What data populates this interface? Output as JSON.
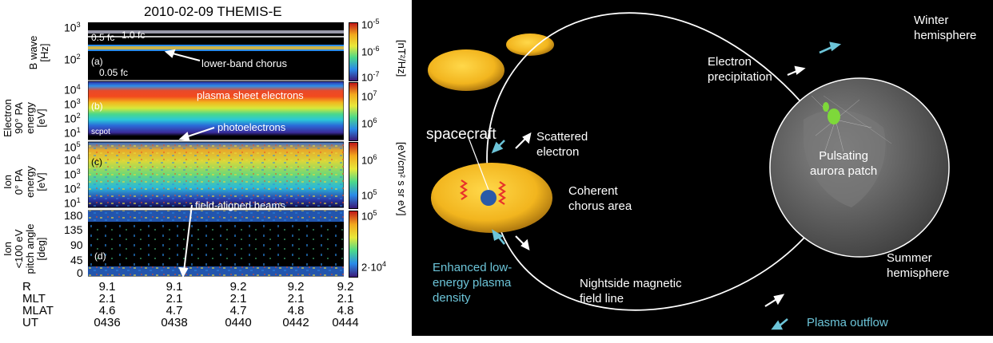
{
  "title": "2010-02-09  THEMIS-E",
  "panels": {
    "a": {
      "tag": "(a)",
      "ylabel_line1": "B wave",
      "ylabel_line2": "[Hz]",
      "yticks": [
        "10",
        "10"
      ],
      "ytick_exp": [
        "3",
        "2"
      ],
      "ref_lines": [
        "0.5 fc",
        "1.0 fc",
        "0.05 fc"
      ],
      "annotation": "lower-band chorus",
      "colorbar_ticks": [
        "10",
        "10",
        "10"
      ],
      "colorbar_exp": [
        "-5",
        "-6",
        "-7"
      ],
      "colorbar_unit": "[nT²/Hz]"
    },
    "b": {
      "tag": "(b)",
      "ylabel_lines": [
        "Electron",
        "90° PA",
        "energy",
        "[eV]"
      ],
      "yticks": [
        "10",
        "10",
        "10",
        "10"
      ],
      "ytick_exp": [
        "4",
        "3",
        "2",
        "1"
      ],
      "annotations": [
        "plasma sheet electrons",
        "photoelectrons",
        "scpot"
      ],
      "colorbar_ticks": [
        "10",
        "10"
      ],
      "colorbar_exp": [
        "7",
        "6"
      ]
    },
    "c": {
      "tag": "(c)",
      "ylabel_lines": [
        "Ion",
        "0° PA",
        "energy",
        "[eV]"
      ],
      "yticks": [
        "10",
        "10",
        "10",
        "10",
        "10"
      ],
      "ytick_exp": [
        "5",
        "4",
        "3",
        "2",
        "1"
      ],
      "annotation": "field-aligned beams",
      "colorbar_ticks": [
        "10",
        "10"
      ],
      "colorbar_exp": [
        "6",
        "5"
      ],
      "colorbar_unit": "[eV/cm² s sr eV]"
    },
    "d": {
      "tag": "(d)",
      "ylabel_lines": [
        "Ion",
        "<100 eV",
        "pitch angle",
        "[deg]"
      ],
      "yticks": [
        "180",
        "135",
        "90",
        "45",
        "0"
      ],
      "colorbar_ticks": [
        "10",
        "2·10"
      ],
      "colorbar_exp": [
        "5",
        "4"
      ]
    }
  },
  "ephemeris": {
    "labels": [
      "R",
      "MLT",
      "MLAT",
      "UT"
    ],
    "columns": [
      {
        "R": "9.1",
        "MLT": "2.1",
        "MLAT": "4.6",
        "UT": "0436"
      },
      {
        "R": "9.1",
        "MLT": "2.1",
        "MLAT": "4.7",
        "UT": "0438"
      },
      {
        "R": "9.2",
        "MLT": "2.1",
        "MLAT": "4.7",
        "UT": "0440"
      },
      {
        "R": "9.2",
        "MLT": "2.1",
        "MLAT": "4.8",
        "UT": "0442"
      },
      {
        "R": "9.2",
        "MLT": "2.1",
        "MLAT": "4.8",
        "UT": "0444"
      }
    ]
  },
  "schematic": {
    "spacecraft": "spacecraft",
    "scattered": [
      "Scattered",
      "electron"
    ],
    "coherent": [
      "Coherent",
      "chorus area"
    ],
    "enhanced": [
      "Enhanced low-",
      "energy plasma",
      "density"
    ],
    "field_line": [
      "Nightside magnetic",
      "field line"
    ],
    "outflow": "Plasma outflow",
    "precip": [
      "Electron",
      "precipitation"
    ],
    "winter": [
      "Winter",
      "hemisphere"
    ],
    "summer": [
      "Summer",
      "hemisphere"
    ],
    "aurora": [
      "Pulsating",
      "aurora patch"
    ]
  },
  "colors": {
    "cyan_text": "#6cc4d8",
    "chorus_red": "#e8322a",
    "disk_yellow": "#f2b51e",
    "spacecraft_blue": "#2a5aa8"
  }
}
